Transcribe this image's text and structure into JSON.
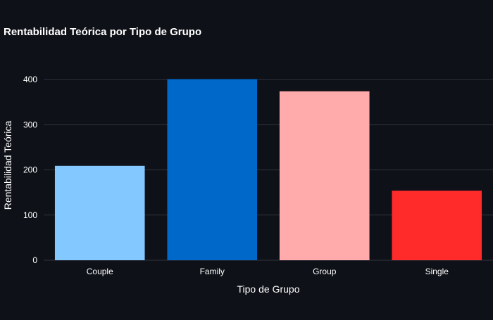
{
  "chart_data": {
    "type": "bar",
    "title": "Rentabilidad Teórica por Tipo de Grupo",
    "xlabel": "Tipo de Grupo",
    "ylabel": "Rentabilidad Teórica",
    "categories": [
      "Couple",
      "Family",
      "Group",
      "Single"
    ],
    "values": [
      209,
      401,
      374,
      154
    ],
    "colors": [
      "#83c9ff",
      "#0068c9",
      "#ffabab",
      "#ff2b2b"
    ],
    "ylim": [
      0,
      422
    ],
    "yticks": [
      0,
      100,
      200,
      300,
      400
    ],
    "grid": true,
    "legend": "none"
  },
  "theme": {
    "background": "#0e1117",
    "text_color": "#ffffff",
    "grid_color": "#31333f"
  }
}
